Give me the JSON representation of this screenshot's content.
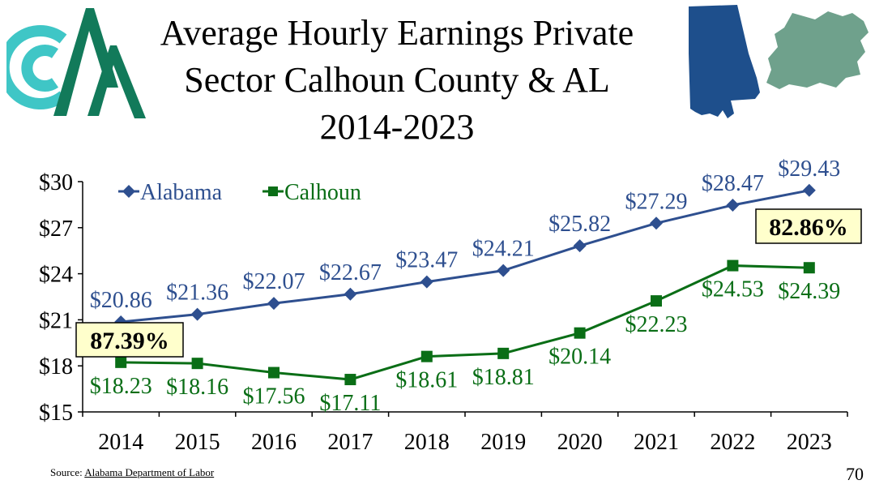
{
  "slide": {
    "title_line1": "Average Hourly Earnings Private",
    "title_line2": "Sector Calhoun County & AL",
    "title_line3": "2014-2023",
    "source_prefix": "Source:",
    "source_link": "Alabama Department of Labor",
    "page_number": "70",
    "colors": {
      "alabama": "#2e4f8f",
      "calhoun": "#0a6e16",
      "logo_teal": "#3fc6c6",
      "logo_green": "#127a5a",
      "map_al": "#1e4f8c",
      "map_county": "#6fa18c",
      "callout_bg": "#ffffcc"
    }
  },
  "chart_data": {
    "type": "line",
    "categories": [
      "2014",
      "2015",
      "2016",
      "2017",
      "2018",
      "2019",
      "2020",
      "2021",
      "2022",
      "2023"
    ],
    "series": [
      {
        "name": "Alabama",
        "values": [
          20.86,
          21.36,
          22.07,
          22.67,
          23.47,
          24.21,
          25.82,
          27.29,
          28.47,
          29.43
        ],
        "labels": [
          "$20.86",
          "$21.36",
          "$22.07",
          "$22.67",
          "$23.47",
          "$24.21",
          "$25.82",
          "$27.29",
          "$28.47",
          "$29.43"
        ],
        "marker": "diamond"
      },
      {
        "name": "Calhoun",
        "values": [
          18.23,
          18.16,
          17.56,
          17.11,
          18.61,
          18.81,
          20.14,
          22.23,
          24.53,
          24.39
        ],
        "labels": [
          "$18.23",
          "$18.16",
          "$17.56",
          "$17.11",
          "$18.61",
          "$18.81",
          "$20.14",
          "$22.23",
          "$24.53",
          "$24.39"
        ],
        "marker": "square"
      }
    ],
    "ylim": [
      15,
      30
    ],
    "yticks": [
      15,
      18,
      21,
      24,
      27,
      30
    ],
    "ytick_labels": [
      "$15",
      "$18",
      "$21",
      "$24",
      "$27",
      "$30"
    ],
    "grid": false,
    "legend": "top-left",
    "annotations": [
      {
        "text": "87.39%",
        "near": "2014"
      },
      {
        "text": "82.86%",
        "near": "2023"
      }
    ]
  }
}
